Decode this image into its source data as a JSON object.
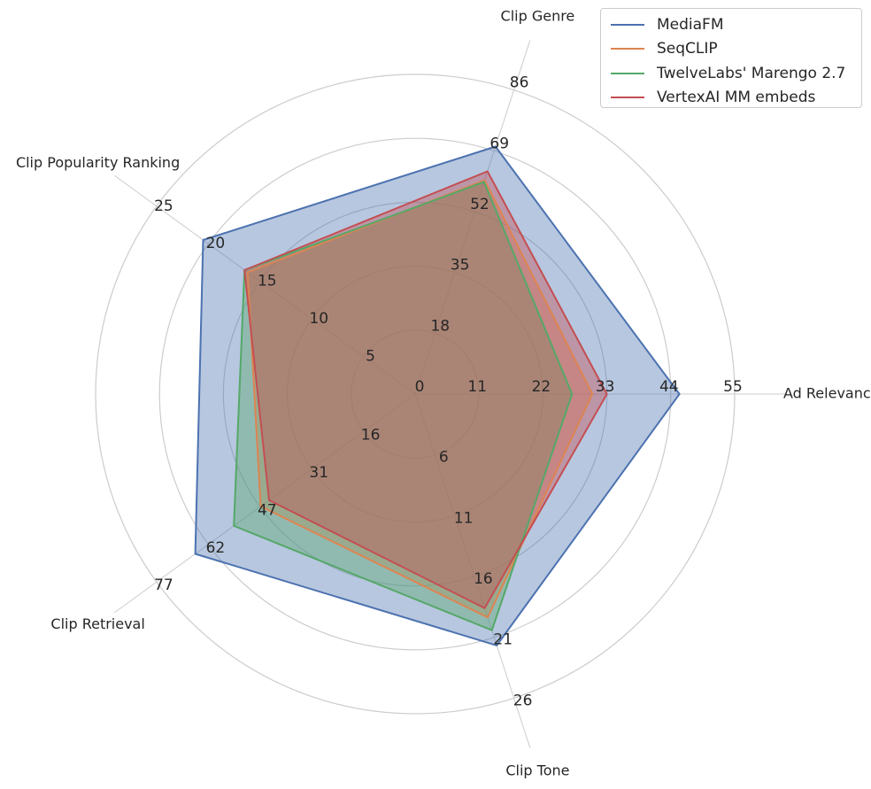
{
  "chart_data": {
    "type": "radar",
    "axes": [
      {
        "name": "Ad Relevancy",
        "ticks": [
          "11",
          "22",
          "33",
          "44",
          "55"
        ],
        "max": 55
      },
      {
        "name": "Clip Genre",
        "ticks": [
          "18",
          "35",
          "52",
          "69",
          "86"
        ],
        "max": 86
      },
      {
        "name": "Clip Popularity Ranking",
        "ticks": [
          "5",
          "10",
          "15",
          "20",
          "25"
        ],
        "max": 25
      },
      {
        "name": "Clip Retrieval",
        "ticks": [
          "16",
          "31",
          "47",
          "62",
          "77"
        ],
        "max": 77
      },
      {
        "name": "Clip Tone",
        "ticks": [
          "6",
          "11",
          "16",
          "21",
          "26"
        ],
        "max": 26
      }
    ],
    "center_label": "0",
    "series": [
      {
        "name": "MediaFM",
        "color": "#4c72b0",
        "values": [
          45.5,
          70.0,
          20.5,
          65.5,
          21.5
        ]
      },
      {
        "name": "SeqCLIP",
        "color": "#dd8452",
        "values": [
          30.5,
          60.5,
          16.2,
          46.0,
          19.1
        ]
      },
      {
        "name": "TwelveLabs' Marengo 2.7",
        "color": "#55a868",
        "values": [
          27.0,
          60.0,
          16.5,
          54.0,
          20.2
        ]
      },
      {
        "name": "VertexAI MM embeds",
        "color": "#c44e52",
        "values": [
          33.0,
          63.0,
          16.5,
          43.5,
          18.3
        ]
      }
    ],
    "legend_position": "top-right",
    "grid": true
  }
}
